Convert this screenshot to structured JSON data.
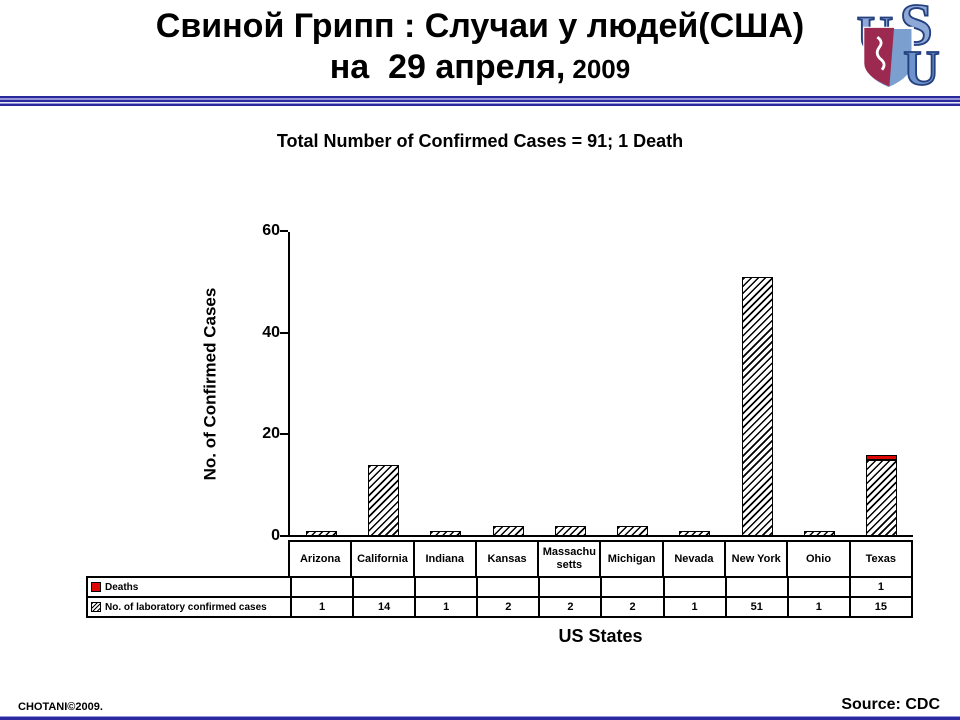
{
  "slide": {
    "title_line1": "Свиной Грипп : Случаи у людей(США)",
    "title_line2_main": "на  29 апреля,",
    "title_line2_year": "2009",
    "footer_left": "CHOTANI©2009.",
    "source": "Source: CDC"
  },
  "logo": {
    "name": "USU shield logo",
    "letters": [
      "U",
      "S",
      "U"
    ],
    "colors": {
      "letter_fill": "#8ea8d8",
      "letter_outline": "#24407e",
      "shield_maroon": "#9c2a50",
      "shield_blue": "#7ba0cf"
    }
  },
  "chart_data": {
    "type": "bar",
    "title": "Total Number of Confirmed Cases = 91; 1 Death",
    "xlabel": "US States",
    "ylabel": "No. of Confirmed Cases",
    "ylim": [
      0,
      60
    ],
    "yticks": [
      0,
      20,
      40,
      60
    ],
    "grid": false,
    "legend_position": "table-below",
    "categories": [
      "Arizona",
      "California",
      "Indiana",
      "Kansas",
      "Massachu setts",
      "Michigan",
      "Nevada",
      "New York",
      "Ohio",
      "Texas"
    ],
    "series": [
      {
        "name": "Deaths",
        "role": "stacked-top",
        "color": "#dd0806",
        "values": [
          null,
          null,
          null,
          null,
          null,
          null,
          null,
          null,
          null,
          1
        ]
      },
      {
        "name": "No. of laboratory confirmed cases",
        "role": "bar",
        "pattern": "diagonal-hatch",
        "values": [
          1,
          14,
          1,
          2,
          2,
          2,
          1,
          51,
          1,
          15
        ]
      }
    ]
  }
}
